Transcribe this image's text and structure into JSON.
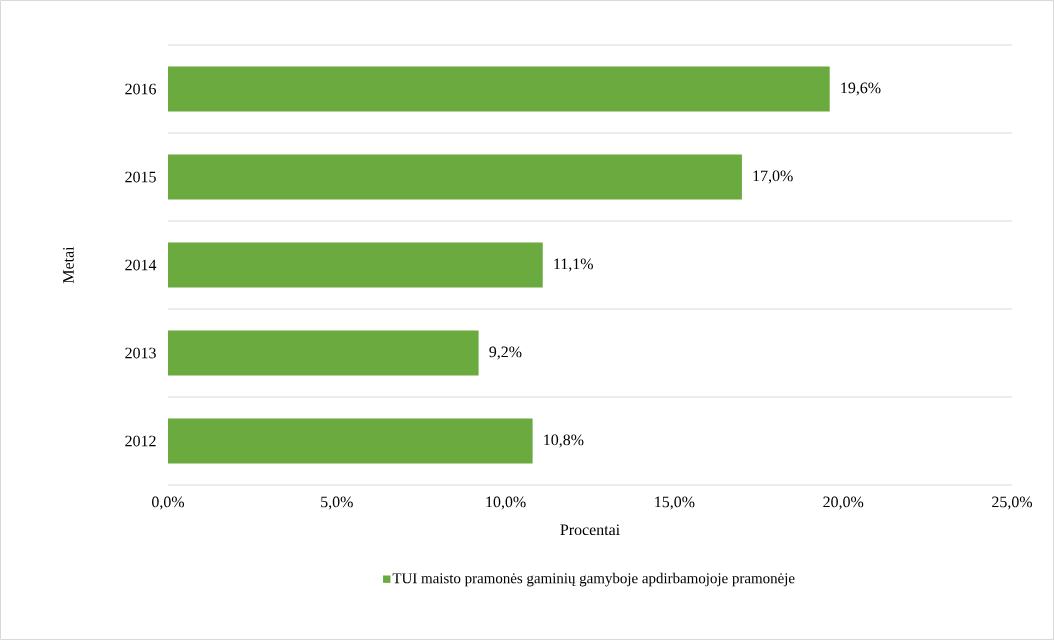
{
  "chart_data": {
    "type": "bar",
    "orientation": "horizontal",
    "xlabel": "Procentai",
    "ylabel": "Metai",
    "categories": [
      "2016",
      "2015",
      "2014",
      "2013",
      "2012"
    ],
    "series": [
      {
        "name": "TUI maisto pramonės gaminių gamyboje apdirbamojoje pramonėje",
        "color": "#6aaa3f",
        "values": [
          19.6,
          17.0,
          11.1,
          9.2,
          10.8
        ],
        "value_labels": [
          "19,6%",
          "17,0%",
          "11,1%",
          "9,2%",
          "10,8%"
        ]
      }
    ],
    "xlim": [
      0,
      25
    ],
    "xticks": [
      {
        "value": 0,
        "label": "0,0%"
      },
      {
        "value": 5,
        "label": "5,0%"
      },
      {
        "value": 10,
        "label": "10,0%"
      },
      {
        "value": 15,
        "label": "15,0%"
      },
      {
        "value": 20,
        "label": "20,0%"
      },
      {
        "value": 25,
        "label": "25,0%"
      }
    ],
    "grid": "y",
    "legend": "bottom"
  }
}
